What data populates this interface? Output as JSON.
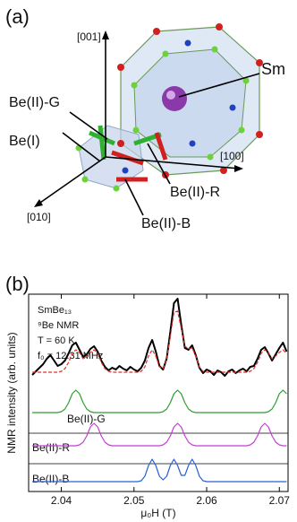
{
  "panel_a": {
    "label": "(a)",
    "axis_001": "[001]",
    "axis_100": "[100]",
    "axis_010": "[010]",
    "sm": "Sm",
    "be2g": "Be(II)-G",
    "be1": "Be(I)",
    "be2r": "Be(II)-R",
    "be2b": "Be(II)-B"
  },
  "panel_b_label": "(b)",
  "chart_data": {
    "type": "line",
    "ylabel": "NMR intensity (arb. units)",
    "xlabel": "μ₀H (T)",
    "annotations": [
      "SmBe₁₃",
      "⁹Be NMR",
      "T = 60 K",
      "f₀ = 12.31 MHz"
    ],
    "xlim": [
      2.0355,
      2.0712
    ],
    "xticks": [
      2.04,
      2.05,
      2.06,
      2.07
    ],
    "ylim": [
      0,
      22
    ],
    "x": [
      2.036,
      2.0365,
      2.037,
      2.0375,
      2.038,
      2.0385,
      2.039,
      2.0395,
      2.04,
      2.0405,
      2.041,
      2.0415,
      2.042,
      2.0425,
      2.043,
      2.0435,
      2.044,
      2.0445,
      2.045,
      2.0455,
      2.046,
      2.0465,
      2.047,
      2.0475,
      2.048,
      2.0485,
      2.049,
      2.0495,
      2.05,
      2.0505,
      2.051,
      2.0515,
      2.052,
      2.0525,
      2.053,
      2.0535,
      2.054,
      2.0545,
      2.055,
      2.0555,
      2.056,
      2.0565,
      2.057,
      2.0575,
      2.058,
      2.0585,
      2.059,
      2.0595,
      2.06,
      2.0605,
      2.061,
      2.0615,
      2.062,
      2.0625,
      2.063,
      2.0635,
      2.064,
      2.0645,
      2.065,
      2.0655,
      2.066,
      2.0665,
      2.067,
      2.0675,
      2.068,
      2.0685,
      2.069,
      2.0695,
      2.07,
      2.0705,
      2.071
    ],
    "series": [
      {
        "color": "#000000",
        "style": "solid",
        "width": 2,
        "values": [
          13.0,
          13.4,
          13.8,
          14.2,
          14.8,
          15.2,
          14.6,
          14.0,
          14.2,
          14.6,
          15.4,
          16.3,
          16.6,
          15.8,
          15.0,
          15.3,
          15.9,
          16.2,
          15.6,
          14.6,
          13.9,
          13.5,
          13.8,
          13.6,
          14.0,
          13.7,
          13.5,
          13.9,
          13.6,
          13.4,
          13.8,
          14.6,
          16.0,
          16.9,
          15.6,
          14.0,
          13.6,
          14.8,
          17.8,
          21.0,
          21.5,
          18.6,
          16.0,
          15.8,
          16.3,
          15.2,
          13.8,
          13.2,
          13.6,
          13.4,
          13.0,
          13.5,
          13.3,
          12.9,
          13.4,
          13.6,
          13.2,
          13.5,
          13.7,
          13.4,
          13.9,
          14.0,
          14.8,
          15.8,
          16.1,
          15.4,
          14.6,
          15.3,
          16.0,
          16.6,
          15.6
        ]
      },
      {
        "color": "#e0302a",
        "style": "dashed",
        "width": 1.2,
        "values": [
          13.3,
          13.3,
          13.3,
          13.3,
          13.3,
          13.3,
          13.3,
          13.3,
          13.4,
          13.7,
          14.4,
          15.4,
          15.8,
          15.5,
          14.8,
          15.1,
          15.5,
          15.8,
          15.4,
          14.4,
          13.7,
          13.4,
          13.3,
          13.3,
          13.3,
          13.3,
          13.3,
          13.3,
          13.3,
          13.3,
          13.4,
          13.9,
          15.1,
          15.8,
          15.1,
          13.9,
          13.7,
          14.7,
          17.3,
          20.0,
          20.1,
          18.2,
          16.2,
          15.9,
          16.0,
          15.1,
          13.9,
          13.4,
          13.3,
          13.3,
          13.3,
          13.3,
          13.3,
          13.3,
          13.3,
          13.3,
          13.3,
          13.3,
          13.3,
          13.3,
          13.4,
          13.7,
          14.4,
          15.4,
          15.8,
          15.5,
          14.8,
          15.1,
          15.5,
          15.8,
          15.4
        ]
      },
      {
        "name": "Be(II)-G",
        "color": "#2e9e2e",
        "style": "solid",
        "width": 1.2,
        "values": [
          8.8,
          8.8,
          8.8,
          8.8,
          8.8,
          8.8,
          8.8,
          8.8,
          8.9,
          9.2,
          9.9,
          10.9,
          11.3,
          10.9,
          9.9,
          9.2,
          8.9,
          8.8,
          8.8,
          8.8,
          8.8,
          8.8,
          8.8,
          8.8,
          8.8,
          8.8,
          8.8,
          8.8,
          8.8,
          8.8,
          8.8,
          8.8,
          8.8,
          8.8,
          8.8,
          8.8,
          8.9,
          9.2,
          9.9,
          10.9,
          11.3,
          10.9,
          9.9,
          9.2,
          8.9,
          8.8,
          8.8,
          8.8,
          8.8,
          8.8,
          8.8,
          8.8,
          8.8,
          8.8,
          8.8,
          8.8,
          8.8,
          8.8,
          8.8,
          8.8,
          8.8,
          8.8,
          8.8,
          8.8,
          8.8,
          8.9,
          9.2,
          9.9,
          10.9,
          11.3,
          10.9
        ]
      },
      {
        "name": "Be(II)-R",
        "color": "#c040d0",
        "style": "solid",
        "width": 1.2,
        "values": [
          5.1,
          5.1,
          5.1,
          5.1,
          5.1,
          5.1,
          5.1,
          5.1,
          5.1,
          5.1,
          5.1,
          5.1,
          5.1,
          5.2,
          5.5,
          6.2,
          7.2,
          7.6,
          7.2,
          6.2,
          5.5,
          5.2,
          5.1,
          5.1,
          5.1,
          5.1,
          5.1,
          5.1,
          5.1,
          5.1,
          5.1,
          5.1,
          5.1,
          5.1,
          5.1,
          5.1,
          5.2,
          5.5,
          6.2,
          7.2,
          7.6,
          7.2,
          6.2,
          5.5,
          5.2,
          5.1,
          5.1,
          5.1,
          5.1,
          5.1,
          5.1,
          5.1,
          5.1,
          5.1,
          5.1,
          5.1,
          5.1,
          5.1,
          5.1,
          5.1,
          5.2,
          5.5,
          6.2,
          7.2,
          7.6,
          7.2,
          6.2,
          5.5,
          5.2,
          5.1,
          5.1
        ]
      },
      {
        "name": "Be(II)-B",
        "color": "#2a5fd8",
        "style": "solid",
        "width": 1.2,
        "values": [
          1.1,
          1.1,
          1.1,
          1.1,
          1.1,
          1.1,
          1.1,
          1.1,
          1.1,
          1.1,
          1.1,
          1.1,
          1.1,
          1.1,
          1.1,
          1.1,
          1.1,
          1.1,
          1.1,
          1.1,
          1.1,
          1.1,
          1.1,
          1.1,
          1.1,
          1.1,
          1.1,
          1.1,
          1.1,
          1.1,
          1.2,
          1.7,
          2.9,
          3.6,
          2.9,
          1.7,
          1.3,
          1.7,
          2.9,
          3.6,
          2.9,
          1.8,
          1.8,
          2.9,
          3.6,
          2.9,
          1.7,
          1.2,
          1.1,
          1.1,
          1.1,
          1.1,
          1.1,
          1.1,
          1.1,
          1.1,
          1.1,
          1.1,
          1.1,
          1.1,
          1.1,
          1.1,
          1.1,
          1.1,
          1.1,
          1.1,
          1.1,
          1.1,
          1.1,
          1.1,
          1.1
        ]
      }
    ]
  }
}
